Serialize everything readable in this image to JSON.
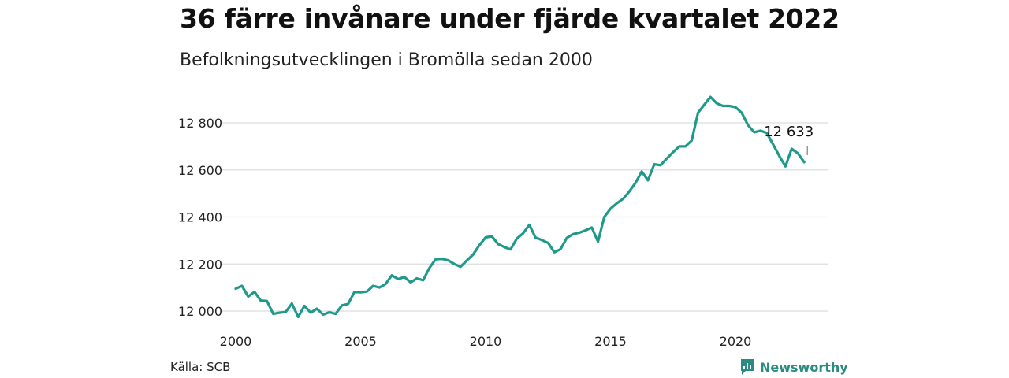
{
  "title": "36 färre invånare under fjärde kvartalet 2022",
  "subtitle": "Befolkningsutvecklingen i Bromölla sedan 2000",
  "source": "Källa: SCB",
  "brand": {
    "name": "Newsworthy",
    "icon": "newsworthy-logo-icon"
  },
  "colors": {
    "line": "#1f9a8a",
    "grid": "#dddddd",
    "brand": "#2a8c80"
  },
  "chart_data": {
    "type": "line",
    "title": "36 färre invånare under fjärde kvartalet 2022",
    "subtitle": "Befolkningsutvecklingen i Bromölla sedan 2000",
    "xlabel": "",
    "ylabel": "",
    "xlim": [
      2000,
      2023.25
    ],
    "ylim": [
      11980,
      12930
    ],
    "grid": true,
    "legend": "none",
    "x_ticks": [
      {
        "value": 2000,
        "label": "2000"
      },
      {
        "value": 2005,
        "label": "2005"
      },
      {
        "value": 2010,
        "label": "2010"
      },
      {
        "value": 2015,
        "label": "2015"
      },
      {
        "value": 2020,
        "label": "2020"
      }
    ],
    "y_ticks": [
      {
        "value": 12000,
        "label": "12 000"
      },
      {
        "value": 12200,
        "label": "12 200"
      },
      {
        "value": 12400,
        "label": "12 400"
      },
      {
        "value": 12600,
        "label": "12 600"
      },
      {
        "value": 12800,
        "label": "12 800"
      }
    ],
    "annotation": {
      "label": "12 633",
      "x": 2022.75,
      "y": 12633
    },
    "series": [
      {
        "x": [
          2000.0,
          2000.25,
          2000.5,
          2000.75,
          2001.0,
          2001.25,
          2001.5,
          2001.75,
          2002.0,
          2002.25,
          2002.5,
          2002.75,
          2003.0,
          2003.25,
          2003.5,
          2003.75,
          2004.0,
          2004.25,
          2004.5,
          2004.75,
          2005.0,
          2005.25,
          2005.5,
          2005.75,
          2006.0,
          2006.25,
          2006.5,
          2006.75,
          2007.0,
          2007.25,
          2007.5,
          2007.75,
          2008.0,
          2008.25,
          2008.5,
          2008.75,
          2009.0,
          2009.25,
          2009.5,
          2009.75,
          2010.0,
          2010.25,
          2010.5,
          2010.75,
          2011.0,
          2011.25,
          2011.5,
          2011.75,
          2012.0,
          2012.25,
          2012.5,
          2012.75,
          2013.0,
          2013.25,
          2013.5,
          2013.75,
          2014.0,
          2014.25,
          2014.5,
          2014.75,
          2015.0,
          2015.25,
          2015.5,
          2015.75,
          2016.0,
          2016.25,
          2016.5,
          2016.75,
          2017.0,
          2017.25,
          2017.5,
          2017.75,
          2018.0,
          2018.25,
          2018.5,
          2018.75,
          2019.0,
          2019.25,
          2019.5,
          2019.75,
          2020.0,
          2020.25,
          2020.5,
          2020.75,
          2021.0,
          2021.25,
          2021.5,
          2021.75,
          2022.0,
          2022.25,
          2022.5,
          2022.75
        ],
        "values": [
          12095,
          12107,
          12062,
          12082,
          12045,
          12043,
          11988,
          11993,
          11996,
          12032,
          11975,
          12022,
          11993,
          12010,
          11985,
          11995,
          11988,
          12024,
          12030,
          12081,
          12080,
          12083,
          12107,
          12100,
          12115,
          12152,
          12136,
          12145,
          12122,
          12139,
          12131,
          12183,
          12220,
          12222,
          12216,
          12200,
          12188,
          12215,
          12240,
          12280,
          12313,
          12318,
          12285,
          12272,
          12262,
          12308,
          12330,
          12367,
          12312,
          12302,
          12290,
          12250,
          12263,
          12311,
          12327,
          12333,
          12343,
          12355,
          12295,
          12400,
          12435,
          12458,
          12477,
          12508,
          12545,
          12593,
          12556,
          12624,
          12620,
          12648,
          12675,
          12700,
          12700,
          12725,
          12843,
          12877,
          12910,
          12883,
          12872,
          12872,
          12867,
          12843,
          12790,
          12760,
          12767,
          12757,
          12710,
          12660,
          12615,
          12690,
          12670,
          12633
        ]
      }
    ]
  }
}
